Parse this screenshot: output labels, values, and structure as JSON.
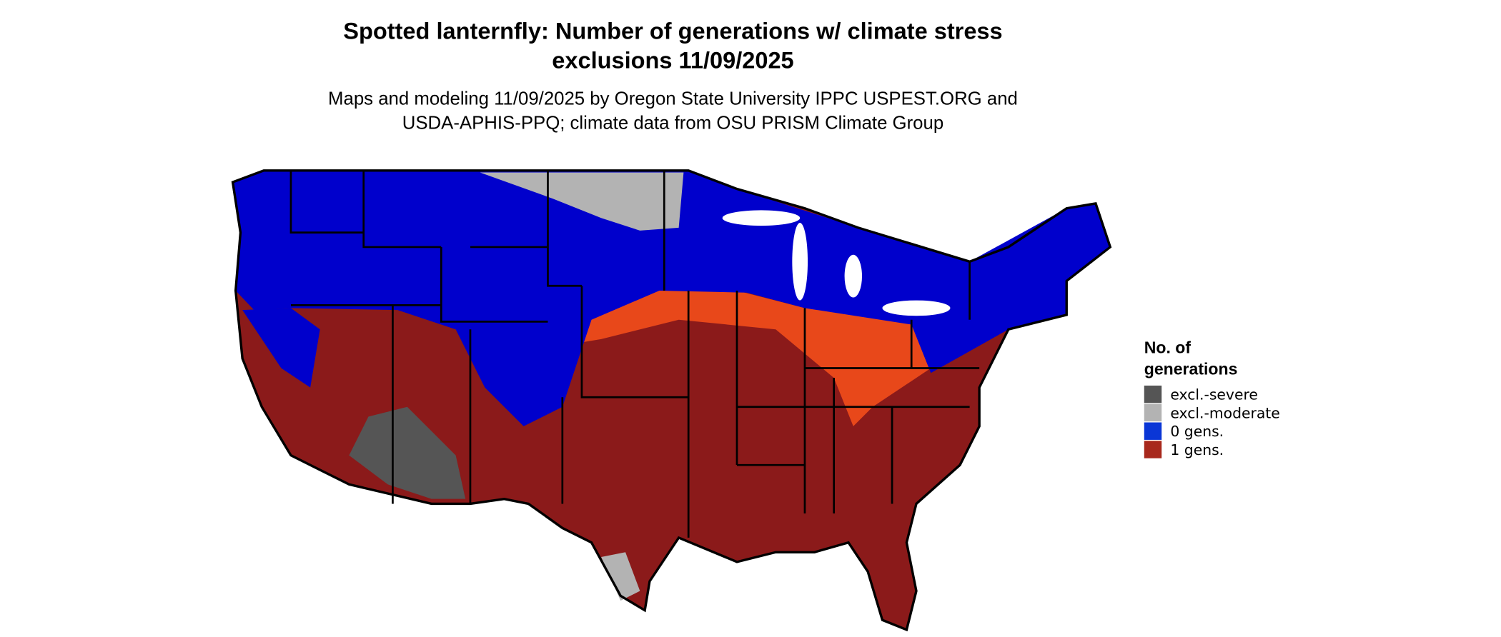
{
  "title": [
    "Spotted lanternfly: Number of generations w/ climate stress",
    "exclusions 11/09/2025"
  ],
  "subtitle": [
    "Maps and modeling 11/09/2025 by Oregon State University IPPC USPEST.ORG and",
    "USDA-APHIS-PPQ; climate data from OSU PRISM Climate Group"
  ],
  "legend": {
    "title": [
      "No. of",
      "generations"
    ],
    "items": [
      {
        "label": "excl.-severe",
        "color": "#555555"
      },
      {
        "label": "excl.-moderate",
        "color": "#b3b3b3"
      },
      {
        "label": "0 gens.",
        "color": "#0a36d6"
      },
      {
        "label": "1 gens.",
        "color": "#a8281c"
      }
    ]
  }
}
